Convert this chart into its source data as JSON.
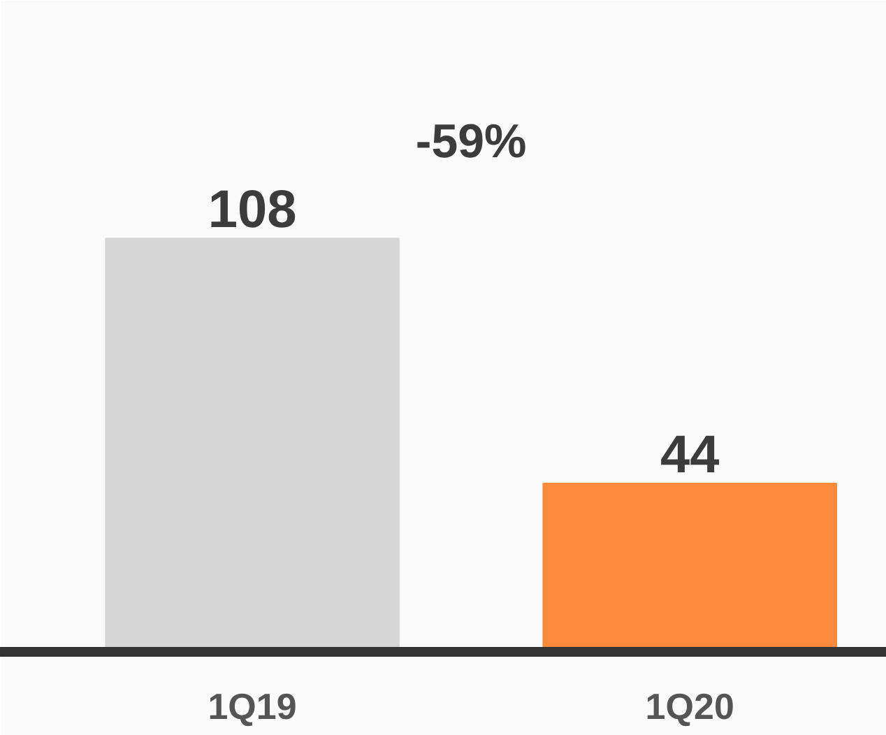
{
  "chart_data": {
    "type": "bar",
    "categories": [
      "1Q19",
      "1Q20"
    ],
    "values": [
      108,
      44
    ],
    "colors": [
      "#d6d6d6",
      "#fb8a3c"
    ],
    "data_labels": true,
    "grid": false,
    "tick_labels": "x",
    "annotations": [
      "-59%"
    ]
  }
}
